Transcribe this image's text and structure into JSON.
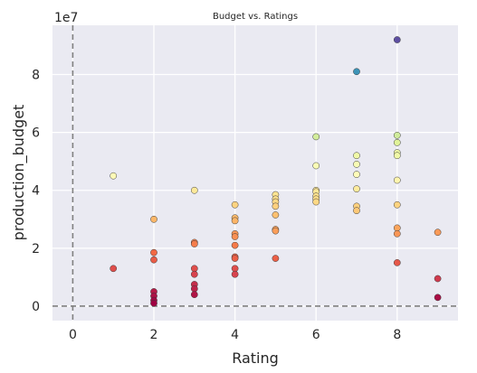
{
  "chart_data": {
    "type": "scatter",
    "title": "Budget vs. Ratings",
    "xlabel": "Rating",
    "ylabel": "production_budget",
    "y_offset_label": "1e7",
    "xlim": [
      -0.5,
      9.5
    ],
    "ylim": [
      -0.5,
      9.7
    ],
    "xticks": [
      0,
      2,
      4,
      6,
      8
    ],
    "yticks": [
      0,
      2,
      4,
      6,
      8
    ],
    "grid": true,
    "background": "#eaeaf2",
    "reference_lines": {
      "x": 0,
      "y": 0,
      "color": "#808080",
      "style": "dashed"
    },
    "colormap": "Spectral",
    "points": [
      {
        "x": 1,
        "y": 4.5
      },
      {
        "x": 1,
        "y": 1.3
      },
      {
        "x": 2,
        "y": 3.0
      },
      {
        "x": 2,
        "y": 1.85
      },
      {
        "x": 2,
        "y": 1.6
      },
      {
        "x": 2,
        "y": 0.5
      },
      {
        "x": 2,
        "y": 0.35
      },
      {
        "x": 2,
        "y": 0.2
      },
      {
        "x": 2,
        "y": 0.1
      },
      {
        "x": 3,
        "y": 4.0
      },
      {
        "x": 3,
        "y": 2.2
      },
      {
        "x": 3,
        "y": 2.15
      },
      {
        "x": 3,
        "y": 1.3
      },
      {
        "x": 3,
        "y": 1.1
      },
      {
        "x": 3,
        "y": 0.75
      },
      {
        "x": 3,
        "y": 0.6
      },
      {
        "x": 3,
        "y": 0.4
      },
      {
        "x": 4,
        "y": 3.5
      },
      {
        "x": 4,
        "y": 3.05
      },
      {
        "x": 4,
        "y": 2.95
      },
      {
        "x": 4,
        "y": 2.5
      },
      {
        "x": 4,
        "y": 2.4
      },
      {
        "x": 4,
        "y": 2.1
      },
      {
        "x": 4,
        "y": 1.7
      },
      {
        "x": 4,
        "y": 1.65
      },
      {
        "x": 4,
        "y": 1.3
      },
      {
        "x": 4,
        "y": 1.1
      },
      {
        "x": 5,
        "y": 3.85
      },
      {
        "x": 5,
        "y": 3.7
      },
      {
        "x": 5,
        "y": 3.6
      },
      {
        "x": 5,
        "y": 3.45
      },
      {
        "x": 5,
        "y": 3.15
      },
      {
        "x": 5,
        "y": 2.65
      },
      {
        "x": 5,
        "y": 2.6
      },
      {
        "x": 5,
        "y": 1.65
      },
      {
        "x": 6,
        "y": 5.85
      },
      {
        "x": 6,
        "y": 4.85
      },
      {
        "x": 6,
        "y": 4.0
      },
      {
        "x": 6,
        "y": 3.95
      },
      {
        "x": 6,
        "y": 3.8
      },
      {
        "x": 6,
        "y": 3.7
      },
      {
        "x": 6,
        "y": 3.6
      },
      {
        "x": 7,
        "y": 8.1
      },
      {
        "x": 7,
        "y": 5.2
      },
      {
        "x": 7,
        "y": 4.9
      },
      {
        "x": 7,
        "y": 4.55
      },
      {
        "x": 7,
        "y": 4.05
      },
      {
        "x": 7,
        "y": 3.45
      },
      {
        "x": 7,
        "y": 3.3
      },
      {
        "x": 8,
        "y": 9.2
      },
      {
        "x": 8,
        "y": 5.9
      },
      {
        "x": 8,
        "y": 5.65
      },
      {
        "x": 8,
        "y": 5.3
      },
      {
        "x": 8,
        "y": 5.2
      },
      {
        "x": 8,
        "y": 4.35
      },
      {
        "x": 8,
        "y": 3.5
      },
      {
        "x": 8,
        "y": 2.7
      },
      {
        "x": 8,
        "y": 2.5
      },
      {
        "x": 8,
        "y": 1.5
      },
      {
        "x": 9,
        "y": 2.55
      },
      {
        "x": 9,
        "y": 0.95
      },
      {
        "x": 9,
        "y": 0.3
      }
    ]
  }
}
